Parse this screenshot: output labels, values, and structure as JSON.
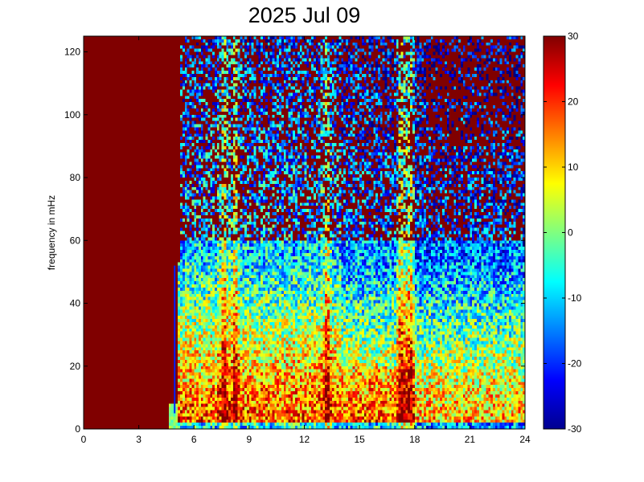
{
  "chart_data": {
    "type": "heatmap",
    "title": "2025 Jul 09",
    "xlabel": "",
    "ylabel": "frequency in mHz",
    "xlim": [
      0,
      24
    ],
    "ylim": [
      0,
      125
    ],
    "xticks": [
      0,
      3,
      6,
      9,
      12,
      15,
      18,
      21,
      24
    ],
    "yticks": [
      0,
      20,
      40,
      60,
      80,
      100,
      120
    ],
    "colorbar": {
      "min": -30,
      "max": 30,
      "ticks": [
        30,
        20,
        10,
        0,
        -10,
        -20,
        -30
      ],
      "colormap": "jet"
    },
    "description_points": {
      "no_data_hours": [
        0,
        5.3
      ],
      "strong_bursts_hours": [
        7.6,
        8.2,
        13.2,
        17.3,
        17.7
      ],
      "low_frequency_band_mHz": [
        0,
        60
      ]
    }
  }
}
